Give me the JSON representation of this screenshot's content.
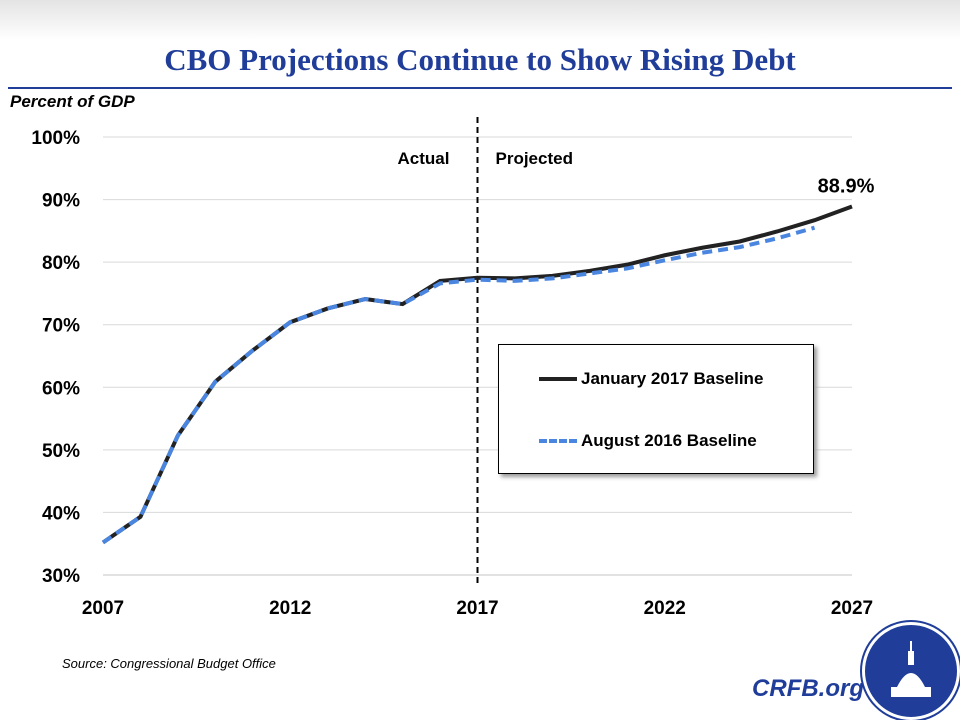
{
  "title": "CBO Projections Continue to Show Rising Debt",
  "source": "Source: Congressional Budget Office",
  "site": "CRFB.org",
  "colors": {
    "title": "#1f3d99",
    "january": "#222222",
    "august": "#4a86e0"
  },
  "chart_data": {
    "type": "line",
    "title": "CBO Projections Continue to Show Rising Debt",
    "ylabel": "Percent of GDP",
    "xlabel": "",
    "xlim": [
      2007,
      2027
    ],
    "ylim": [
      30,
      100
    ],
    "xticks": [
      "2007",
      "2012",
      "2017",
      "2022",
      "2027"
    ],
    "yticks": [
      "30%",
      "40%",
      "50%",
      "60%",
      "70%",
      "80%",
      "90%",
      "100%"
    ],
    "grid": "horizontal",
    "legend_position": "center-right",
    "divider": {
      "x": 2017,
      "left_label": "Actual",
      "right_label": "Projected"
    },
    "annotation": {
      "x": 2027,
      "y": 88.9,
      "text": "88.9%"
    },
    "series": [
      {
        "name": "January 2017 Baseline",
        "style": "solid",
        "x": [
          2007,
          2008,
          2009,
          2010,
          2011,
          2012,
          2013,
          2014,
          2015,
          2016,
          2017,
          2018,
          2019,
          2020,
          2021,
          2022,
          2023,
          2024,
          2025,
          2026,
          2027
        ],
        "y": [
          35.2,
          39.3,
          52.3,
          60.9,
          65.9,
          70.4,
          72.6,
          74.1,
          73.3,
          77.0,
          77.5,
          77.4,
          77.8,
          78.6,
          79.6,
          81.1,
          82.3,
          83.3,
          84.9,
          86.7,
          88.9
        ]
      },
      {
        "name": "August 2016 Baseline",
        "style": "dashed",
        "x": [
          2007,
          2008,
          2009,
          2010,
          2011,
          2012,
          2013,
          2014,
          2015,
          2016,
          2017,
          2018,
          2019,
          2020,
          2021,
          2022,
          2023,
          2024,
          2025,
          2026
        ],
        "y": [
          35.2,
          39.3,
          52.3,
          60.9,
          65.9,
          70.4,
          72.6,
          74.1,
          73.3,
          76.6,
          77.2,
          77.0,
          77.4,
          78.2,
          79.0,
          80.3,
          81.5,
          82.4,
          83.8,
          85.5
        ]
      }
    ]
  }
}
